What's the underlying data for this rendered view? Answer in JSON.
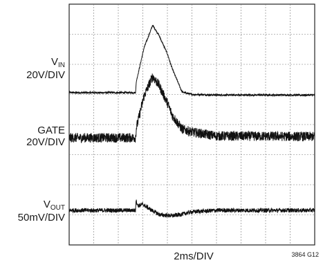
{
  "chart_data": {
    "type": "line",
    "grid": true,
    "grid_divisions": {
      "x": 10,
      "y": 8
    },
    "x_scale": "2ms/DIV",
    "figure_id": "3864 G12",
    "series": [
      {
        "name_main": "V",
        "name_sub": "IN",
        "scale": "20V/DIV",
        "baseline_div": 5.06,
        "noise_div": 0.03,
        "points": [
          [
            0,
            5.06
          ],
          [
            2.7,
            5.06
          ],
          [
            2.74,
            5.45
          ],
          [
            3.05,
            6.55
          ],
          [
            3.4,
            7.3
          ],
          [
            3.65,
            6.98
          ],
          [
            4.0,
            6.35
          ],
          [
            4.2,
            5.85
          ],
          [
            4.6,
            5.08
          ],
          [
            5.0,
            5.0
          ],
          [
            6.0,
            4.98
          ],
          [
            10,
            4.98
          ]
        ]
      },
      {
        "name_main": "GATE",
        "name_sub": "",
        "scale": "20V/DIV",
        "baseline_div": 3.56,
        "noise_div": 0.16,
        "points": [
          [
            0,
            3.56
          ],
          [
            2.7,
            3.56
          ],
          [
            2.74,
            3.9
          ],
          [
            3.05,
            4.95
          ],
          [
            3.4,
            5.6
          ],
          [
            3.65,
            5.32
          ],
          [
            4.0,
            4.72
          ],
          [
            4.2,
            4.3
          ],
          [
            4.6,
            3.85
          ],
          [
            5.0,
            3.75
          ],
          [
            6.0,
            3.62
          ],
          [
            10,
            3.6
          ]
        ]
      },
      {
        "name_main": "V",
        "name_sub": "OUT",
        "scale": "50mV/DIV",
        "baseline_div": 1.15,
        "noise_div": 0.07,
        "points": [
          [
            0,
            1.15
          ],
          [
            2.7,
            1.15
          ],
          [
            2.72,
            1.48
          ],
          [
            2.8,
            1.3
          ],
          [
            3.0,
            1.35
          ],
          [
            3.3,
            1.18
          ],
          [
            3.7,
            1.0
          ],
          [
            4.2,
            0.97
          ],
          [
            4.6,
            1.02
          ],
          [
            5.0,
            1.1
          ],
          [
            6.0,
            1.15
          ],
          [
            10,
            1.15
          ]
        ]
      }
    ]
  }
}
